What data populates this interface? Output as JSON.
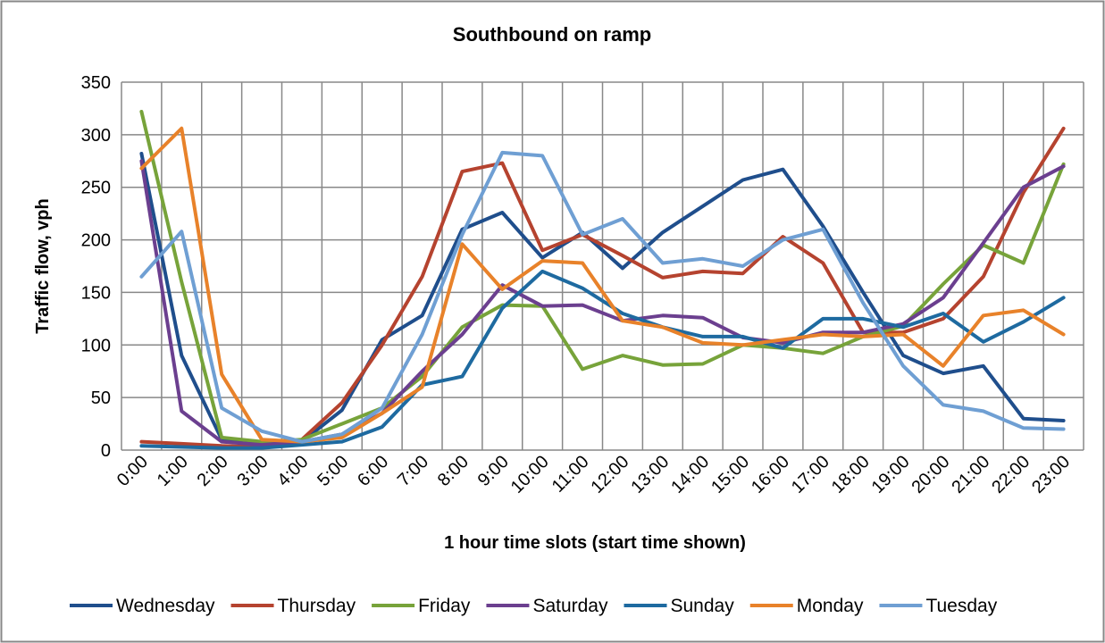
{
  "chart_data": {
    "type": "line",
    "title": "Southbound on ramp",
    "xlabel": "1 hour time slots (start time shown)",
    "ylabel": "Traffic flow, vph",
    "categories": [
      "0:00",
      "1:00",
      "2:00",
      "3:00",
      "4:00",
      "5:00",
      "6:00",
      "7:00",
      "8:00",
      "9:00",
      "10:00",
      "11:00",
      "12:00",
      "13:00",
      "14:00",
      "15:00",
      "16:00",
      "17:00",
      "18:00",
      "19:00",
      "20:00",
      "21:00",
      "22:00",
      "23:00"
    ],
    "ylim": [
      0,
      350
    ],
    "yticks": [
      0,
      50,
      100,
      150,
      200,
      250,
      300,
      350
    ],
    "grid": true,
    "legend": "bottom",
    "series": [
      {
        "name": "Wednesday",
        "color": "#1f4e8c",
        "values": [
          282,
          90,
          10,
          5,
          8,
          38,
          105,
          128,
          210,
          226,
          183,
          207,
          173,
          207,
          232,
          257,
          267,
          213,
          150,
          90,
          73,
          80,
          30,
          28
        ]
      },
      {
        "name": "Thursday",
        "color": "#b5432f",
        "values": [
          8,
          6,
          4,
          3,
          10,
          45,
          100,
          165,
          265,
          273,
          190,
          205,
          185,
          164,
          170,
          168,
          203,
          178,
          112,
          112,
          125,
          165,
          245,
          306
        ]
      },
      {
        "name": "Friday",
        "color": "#77a33a",
        "values": [
          322,
          160,
          12,
          8,
          10,
          25,
          40,
          70,
          117,
          138,
          137,
          77,
          90,
          81,
          82,
          100,
          97,
          92,
          108,
          118,
          158,
          195,
          178,
          272
        ]
      },
      {
        "name": "Saturday",
        "color": "#6b3f8f",
        "values": [
          275,
          37,
          8,
          5,
          8,
          15,
          35,
          75,
          110,
          157,
          137,
          138,
          123,
          128,
          126,
          107,
          102,
          112,
          112,
          120,
          145,
          197,
          250,
          270
        ]
      },
      {
        "name": "Sunday",
        "color": "#1e6aa0",
        "values": [
          4,
          3,
          2,
          2,
          5,
          8,
          22,
          62,
          70,
          135,
          170,
          154,
          130,
          117,
          108,
          108,
          97,
          125,
          125,
          117,
          130,
          103,
          122,
          145
        ]
      },
      {
        "name": "Monday",
        "color": "#e8822a",
        "values": [
          268,
          306,
          72,
          10,
          8,
          12,
          35,
          60,
          196,
          153,
          180,
          178,
          123,
          117,
          102,
          100,
          105,
          110,
          108,
          110,
          80,
          128,
          133,
          110
        ]
      },
      {
        "name": "Tuesday",
        "color": "#6f9fd3",
        "values": [
          165,
          208,
          40,
          18,
          8,
          15,
          40,
          110,
          205,
          283,
          280,
          205,
          220,
          178,
          182,
          175,
          200,
          210,
          140,
          80,
          43,
          37,
          21,
          20
        ]
      }
    ]
  }
}
